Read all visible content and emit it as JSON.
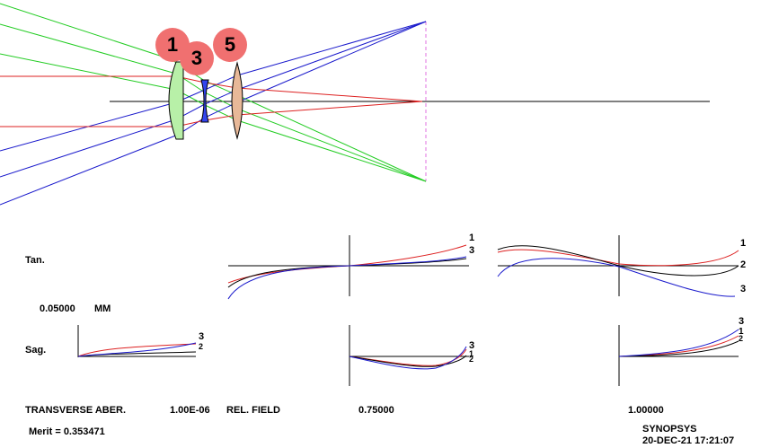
{
  "colors": {
    "axis": "#000000",
    "red": "#dd2222",
    "green": "#22cc22",
    "blue": "#1a1acc",
    "image_plane": "#e070e0",
    "badge_fill": "#f07070",
    "lens1_fill": "#b8f0a8",
    "lens2_fill": "#3344ee",
    "lens3_fill": "#e8b898",
    "curve_black": "#000000",
    "curve_red": "#dd2222",
    "curve_blue": "#1a1acc"
  },
  "badges": {
    "b1": "1",
    "b3": "3",
    "b5": "5"
  },
  "labels": {
    "tan": "Tan.",
    "sag": "Sag.",
    "scale_value": "0.05000",
    "scale_unit": "MM",
    "transverse": "TRANSVERSE ABER.",
    "scale_exp": "1.00E-06",
    "rel_field": "REL. FIELD",
    "field_075": "0.75000",
    "field_100": "1.00000",
    "merit": "Merit = 0.353471",
    "program": "SYNOPSYS",
    "datetime": "20-DEC-21  17:21:07"
  },
  "curve_labels": {
    "tan_mid_top": "1",
    "tan_mid_bot": "3",
    "tan_right_1": "1",
    "tan_right_2": "2",
    "tan_right_3": "3",
    "sag_left_3": "3",
    "sag_left_2": "2",
    "sag_mid_3": "3",
    "sag_mid_1": "1",
    "sag_mid_2": "2",
    "sag_right_3": "3",
    "sag_right_1": "1",
    "sag_right_2": "2"
  }
}
